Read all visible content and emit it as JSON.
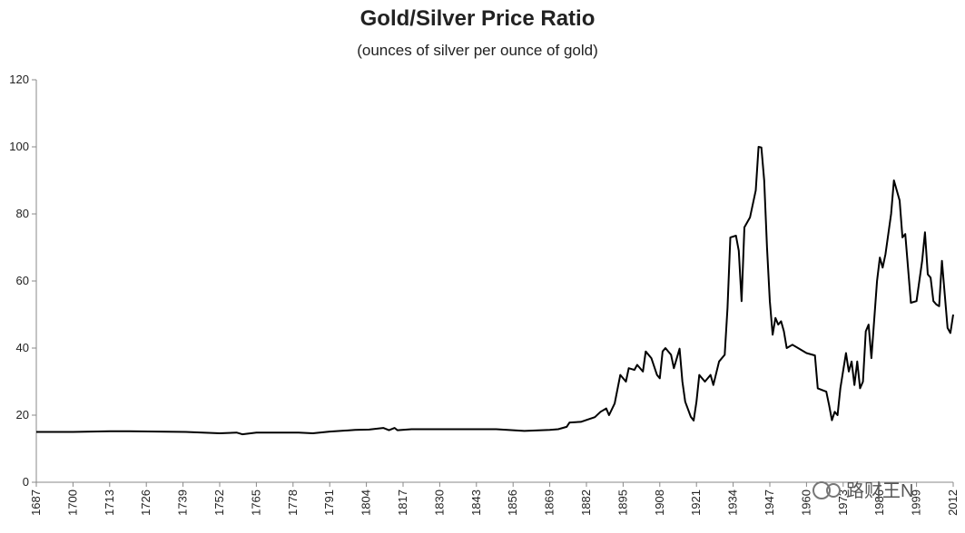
{
  "chart_data": {
    "type": "line",
    "title": "Gold/Silver Price Ratio",
    "subtitle": "(ounces of silver per ounce of gold)",
    "watermark": "路财王N",
    "color": "#000000",
    "x": [
      1687,
      1700,
      1713,
      1720,
      1740,
      1752,
      1758,
      1760,
      1765,
      1780,
      1785,
      1791,
      1800,
      1805,
      1810,
      1812,
      1814,
      1815,
      1820,
      1830,
      1850,
      1860,
      1869,
      1872,
      1875,
      1876,
      1880,
      1885,
      1887,
      1889,
      1890,
      1892,
      1894,
      1896,
      1897,
      1899,
      1900,
      1902,
      1903,
      1905,
      1907,
      1908,
      1909,
      1910,
      1912,
      1913,
      1915,
      1916,
      1917,
      1919,
      1920,
      1921,
      1922,
      1924,
      1926,
      1927,
      1929,
      1931,
      1932,
      1933,
      1935,
      1936,
      1937,
      1938,
      1940,
      1942,
      1943,
      1944,
      1945,
      1946,
      1947,
      1948,
      1949,
      1950,
      1951,
      1952,
      1953,
      1955,
      1960,
      1963,
      1964,
      1967,
      1968,
      1969,
      1970,
      1971,
      1972,
      1974,
      1975,
      1976,
      1977,
      1978,
      1979,
      1980,
      1981,
      1982,
      1983,
      1985,
      1986,
      1987,
      1988,
      1990,
      1991,
      1993,
      1994,
      1995,
      1997,
      1999,
      2001,
      2002,
      2003,
      2004,
      2005,
      2006,
      2007,
      2008,
      2009,
      2010,
      2011,
      2012
    ],
    "values": [
      15,
      15,
      15.2,
      15.2,
      15,
      14.6,
      14.8,
      14.3,
      14.8,
      14.8,
      14.6,
      15.1,
      15.6,
      15.7,
      16.2,
      15.5,
      16.2,
      15.5,
      15.8,
      15.8,
      15.8,
      15.3,
      15.6,
      15.8,
      16.5,
      17.8,
      18,
      19.4,
      21,
      22,
      20,
      23.5,
      32,
      30,
      34,
      33.5,
      35,
      33,
      39,
      37,
      32,
      31,
      39,
      40,
      38,
      34,
      39.8,
      30,
      24,
      19.5,
      18.4,
      24,
      32,
      30,
      32,
      29,
      36,
      38,
      52,
      73,
      73.5,
      69,
      54,
      76,
      79,
      87,
      100,
      99.8,
      90,
      70,
      54,
      44,
      49,
      47,
      48,
      45,
      40,
      41,
      38.5,
      37.8,
      28,
      27,
      23,
      18.5,
      21,
      20,
      28,
      38.5,
      33,
      36,
      29,
      36,
      28,
      30,
      45,
      47,
      37,
      60,
      67,
      64,
      68,
      80,
      90,
      84,
      73,
      74,
      53.5,
      54,
      66,
      74.5,
      62,
      61,
      54,
      53,
      52.5,
      66,
      56,
      46,
      44.5,
      50
    ],
    "xlim": [
      1687,
      2012
    ],
    "xticks": [
      1687,
      1700,
      1713,
      1726,
      1739,
      1752,
      1765,
      1778,
      1791,
      1804,
      1817,
      1830,
      1843,
      1856,
      1869,
      1882,
      1895,
      1908,
      1921,
      1934,
      1947,
      1960,
      1973,
      1986,
      1999,
      2012
    ],
    "ylim": [
      0,
      120
    ],
    "yticks": [
      0,
      20,
      40,
      60,
      80,
      100,
      120
    ]
  }
}
